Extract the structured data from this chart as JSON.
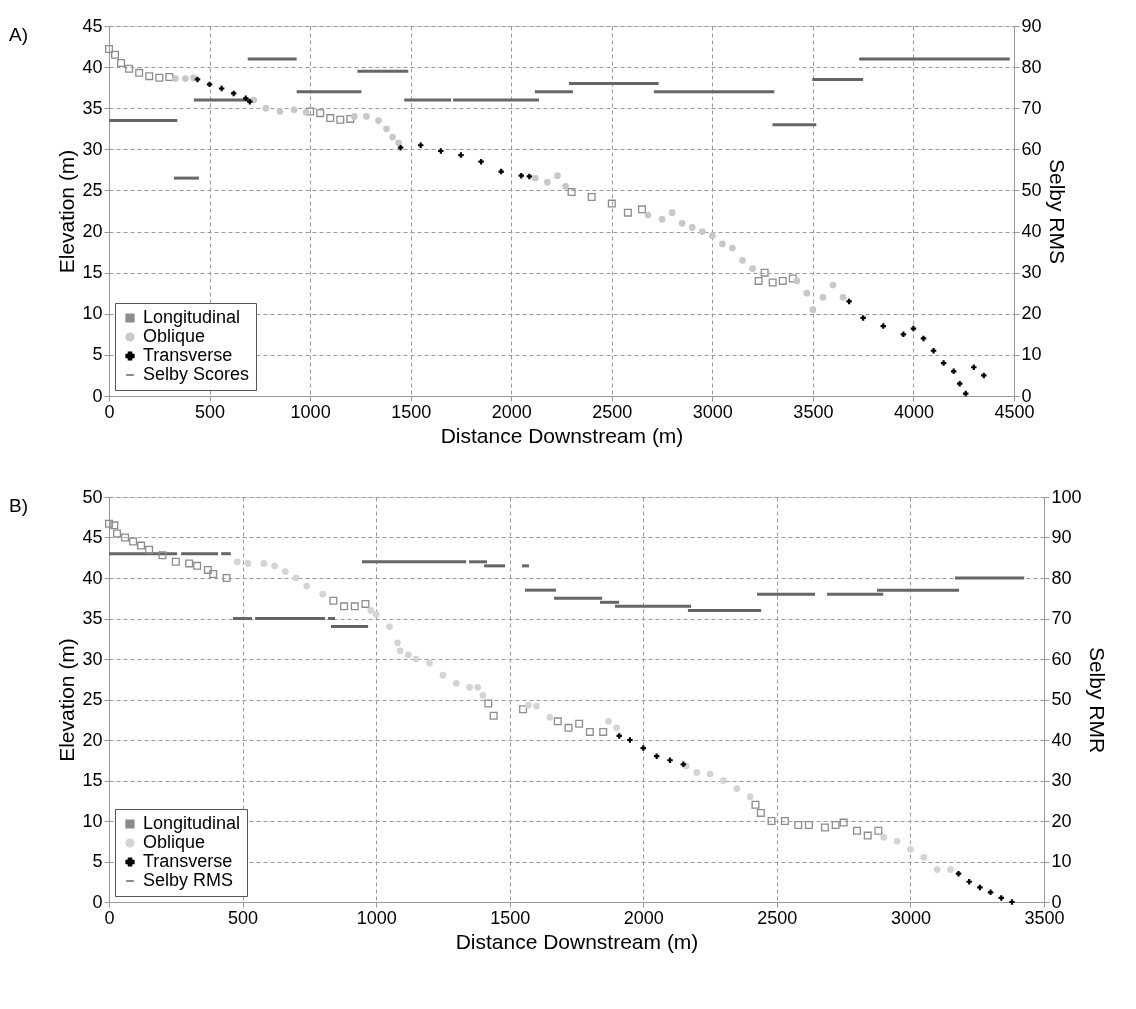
{
  "chart_data": [
    {
      "type": "scatter",
      "annotations": [
        "A)"
      ],
      "xlabel": "Distance Downstream (m)",
      "ylabel": "Elevation (m)",
      "y2label": "Selby RMS",
      "xlim": [
        0,
        4500
      ],
      "xticks": [
        0,
        500,
        1000,
        1500,
        2000,
        2500,
        3000,
        3500,
        4000,
        4500
      ],
      "ylim": [
        0,
        45
      ],
      "yticks": [
        0,
        5,
        10,
        15,
        20,
        25,
        30,
        35,
        40,
        45
      ],
      "y2lim": [
        0,
        90
      ],
      "y2ticks": [
        0,
        10,
        20,
        30,
        40,
        50,
        60,
        70,
        80,
        90
      ],
      "grid": true,
      "legend": "bottom left",
      "series": [
        {
          "name": "Longitudinal",
          "color": "#8c8c8c",
          "marker": "square",
          "x": [
            0,
            30,
            60,
            100,
            150,
            200,
            250,
            300,
            1000,
            1050,
            1100,
            1150,
            1200,
            2300,
            2400,
            2500,
            2580,
            2650,
            3230,
            3260,
            3300,
            3350,
            3400
          ],
          "values": [
            42.2,
            41.5,
            40.5,
            39.8,
            39.3,
            38.9,
            38.7,
            38.8,
            34.6,
            34.4,
            33.8,
            33.6,
            33.7,
            24.8,
            24.2,
            23.4,
            22.3,
            22.7,
            14.0,
            15.0,
            13.8,
            14.0,
            14.3
          ]
        },
        {
          "name": "Oblique",
          "color": "#c8c8c8",
          "marker": "circle",
          "x": [
            330,
            380,
            420,
            720,
            780,
            850,
            920,
            980,
            1220,
            1280,
            1340,
            1380,
            1410,
            1440,
            2120,
            2180,
            2230,
            2270,
            2680,
            2750,
            2800,
            2850,
            2900,
            2950,
            3000,
            3050,
            3100,
            3150,
            3200,
            3420,
            3470,
            3500,
            3550,
            3600,
            3650
          ],
          "values": [
            38.6,
            38.6,
            38.7,
            36.0,
            35.0,
            34.6,
            34.8,
            34.5,
            34.0,
            34.0,
            33.5,
            32.5,
            31.5,
            30.8,
            26.5,
            26.0,
            26.8,
            25.5,
            22.0,
            21.5,
            22.3,
            21.0,
            20.5,
            20.0,
            19.5,
            18.5,
            18.0,
            16.5,
            15.5,
            14.0,
            12.5,
            10.5,
            12.0,
            13.5,
            12.0
          ]
        },
        {
          "name": "Transverse",
          "color": "#000000",
          "marker": "cross",
          "x": [
            440,
            500,
            560,
            620,
            680,
            700,
            1450,
            1550,
            1650,
            1750,
            1850,
            1950,
            2050,
            2090,
            3680,
            3750,
            3850,
            3950,
            4000,
            4050,
            4100,
            4150,
            4200,
            4230,
            4260,
            4300,
            4350
          ],
          "values": [
            38.5,
            37.9,
            37.4,
            36.8,
            36.2,
            35.8,
            30.2,
            30.5,
            29.8,
            29.3,
            28.5,
            27.3,
            26.8,
            26.7,
            11.5,
            9.5,
            8.5,
            7.5,
            8.2,
            7.0,
            5.5,
            4.0,
            3.0,
            1.5,
            0.3,
            3.5,
            2.5
          ]
        },
        {
          "name": "Selby Scores",
          "color": "#666666",
          "type": "line",
          "marker": "none",
          "axis": "y2",
          "x": [
            0,
            340,
            null,
            323,
            447,
            null,
            422,
            709,
            null,
            690,
            933,
            null,
            933,
            1255,
            null,
            1235,
            1488,
            null,
            1468,
            1701,
            null,
            1711,
            2138,
            null,
            2118,
            2307,
            null,
            2287,
            2733,
            null,
            2709,
            3308,
            null,
            3299,
            3517,
            null,
            3497,
            3750,
            null,
            3730,
            4479
          ],
          "values": [
            67,
            67,
            null,
            53,
            53,
            null,
            72,
            72,
            null,
            82,
            82,
            null,
            74,
            74,
            null,
            79,
            79,
            null,
            72,
            72,
            null,
            72,
            72,
            null,
            74,
            74,
            null,
            76,
            76,
            null,
            74,
            74,
            null,
            66,
            66,
            null,
            77,
            77,
            null,
            82,
            82
          ]
        }
      ]
    },
    {
      "type": "scatter",
      "annotations": [
        "B)"
      ],
      "xlabel": "Distance Downstream (m)",
      "ylabel": "Elevation (m)",
      "y2label": "Selby RMR",
      "xlim": [
        0,
        3500
      ],
      "xticks": [
        0,
        500,
        1000,
        1500,
        2000,
        2500,
        3000,
        3500
      ],
      "ylim": [
        0,
        50
      ],
      "yticks": [
        0,
        5,
        10,
        15,
        20,
        25,
        30,
        35,
        40,
        45,
        50
      ],
      "y2lim": [
        0,
        100
      ],
      "y2ticks": [
        0,
        10,
        20,
        30,
        40,
        50,
        60,
        70,
        80,
        90,
        100
      ],
      "grid": true,
      "legend": "bottom left",
      "series": [
        {
          "name": "Longitudinal",
          "color": "#8c8c8c",
          "marker": "square",
          "x": [
            0,
            20,
            30,
            60,
            90,
            120,
            150,
            200,
            250,
            300,
            330,
            370,
            390,
            440,
            840,
            880,
            920,
            960,
            1420,
            1440,
            1550,
            1680,
            1720,
            1760,
            1800,
            1850,
            2420,
            2440,
            2480,
            2530,
            2580,
            2620,
            2680,
            2720,
            2750,
            2800,
            2840,
            2880
          ],
          "values": [
            46.7,
            46.5,
            45.5,
            45.0,
            44.5,
            44.0,
            43.5,
            42.8,
            42.0,
            41.8,
            41.5,
            41.0,
            40.5,
            40.0,
            37.2,
            36.5,
            36.5,
            36.8,
            24.5,
            23.0,
            23.8,
            22.3,
            21.5,
            22.0,
            21.0,
            21.0,
            12.0,
            11.0,
            10.0,
            10.0,
            9.5,
            9.5,
            9.2,
            9.5,
            9.8,
            8.8,
            8.2,
            8.8
          ]
        },
        {
          "name": "Oblique",
          "color": "#d4d4d4",
          "marker": "circle",
          "x": [
            480,
            520,
            580,
            620,
            660,
            700,
            740,
            800,
            980,
            1000,
            1050,
            1080,
            1090,
            1120,
            1150,
            1200,
            1250,
            1300,
            1350,
            1380,
            1400,
            1570,
            1600,
            1650,
            1870,
            1900,
            2160,
            2200,
            2250,
            2300,
            2350,
            2400,
            2900,
            2950,
            3000,
            3050,
            3100,
            3150
          ],
          "values": [
            42.0,
            41.8,
            41.8,
            41.5,
            40.8,
            40.0,
            39.0,
            38.0,
            36.0,
            35.5,
            34.0,
            32.0,
            31.0,
            30.5,
            30.0,
            29.5,
            28.0,
            27.0,
            26.5,
            26.5,
            25.5,
            24.3,
            24.2,
            22.8,
            22.3,
            21.5,
            16.8,
            16.0,
            15.8,
            15.0,
            14.0,
            13.0,
            8.0,
            7.5,
            6.5,
            5.5,
            4.0,
            4.0
          ]
        },
        {
          "name": "Transverse",
          "color": "#000000",
          "marker": "cross",
          "x": [
            1910,
            1950,
            2000,
            2050,
            2100,
            2150,
            3180,
            3220,
            3260,
            3300,
            3340,
            3380
          ],
          "values": [
            20.5,
            20.0,
            19.0,
            18.0,
            17.5,
            17.0,
            3.5,
            2.5,
            1.8,
            1.2,
            0.5,
            0
          ]
        },
        {
          "name": "Selby RMS",
          "color": "#666666",
          "type": "line",
          "marker": "none",
          "axis": "y2",
          "x": [
            0,
            255,
            null,
            270,
            408,
            null,
            420,
            456,
            null,
            464,
            535,
            null,
            547,
            809,
            null,
            820,
            846,
            null,
            831,
            970,
            null,
            947,
            1337,
            null,
            1348,
            1415,
            null,
            1404,
            1483,
            null,
            1546,
            1572,
            null,
            1557,
            1673,
            null,
            1666,
            1846,
            null,
            1838,
            1909,
            null,
            1894,
            2179,
            null,
            2167,
            2441,
            null,
            2426,
            2643,
            null,
            2688,
            2898,
            null,
            2875,
            3182,
            null,
            3167,
            3426
          ],
          "values": [
            86,
            86,
            null,
            86,
            86,
            null,
            86,
            86,
            null,
            70,
            70,
            null,
            70,
            70,
            null,
            70,
            70,
            null,
            68,
            68,
            null,
            84,
            84,
            null,
            84,
            84,
            null,
            83,
            83,
            null,
            83,
            83,
            null,
            77,
            77,
            null,
            75,
            75,
            null,
            74,
            74,
            null,
            73,
            73,
            null,
            72,
            72,
            null,
            76,
            76,
            null,
            76,
            76,
            null,
            77,
            77,
            null,
            80,
            80
          ]
        }
      ]
    }
  ]
}
